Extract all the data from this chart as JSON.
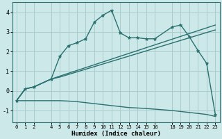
{
  "title": "",
  "xlabel": "Humidex (Indice chaleur)",
  "bg_color": "#cce8e8",
  "grid_color": "#aacccc",
  "line_color": "#2a7070",
  "xlim": [
    -0.5,
    23.5
  ],
  "ylim": [
    -1.6,
    4.5
  ],
  "xticks": [
    0,
    1,
    2,
    4,
    5,
    6,
    7,
    8,
    9,
    10,
    11,
    12,
    13,
    14,
    15,
    16,
    18,
    19,
    20,
    21,
    22,
    23
  ],
  "yticks": [
    -1,
    0,
    1,
    2,
    3,
    4
  ],
  "series": [
    {
      "x": [
        0,
        1,
        2,
        4,
        5,
        6,
        7,
        8,
        9,
        10,
        11,
        12,
        13,
        14,
        15,
        16,
        18,
        19,
        20,
        21,
        22,
        23
      ],
      "y": [
        -0.5,
        0.1,
        0.2,
        0.6,
        1.75,
        2.3,
        2.45,
        2.65,
        3.5,
        3.85,
        4.1,
        2.95,
        2.7,
        2.7,
        2.65,
        2.65,
        3.25,
        3.35,
        2.75,
        2.05,
        1.4,
        -1.2
      ],
      "markers": true
    },
    {
      "x": [
        0,
        4,
        5,
        6,
        7,
        8,
        9,
        10,
        11,
        12,
        13,
        14,
        15,
        16,
        18,
        19,
        20,
        21,
        22,
        23
      ],
      "y": [
        -0.5,
        -0.5,
        -0.5,
        -0.52,
        -0.55,
        -0.6,
        -0.65,
        -0.7,
        -0.75,
        -0.8,
        -0.85,
        -0.87,
        -0.9,
        -0.93,
        -1.0,
        -1.05,
        -1.1,
        -1.15,
        -1.2,
        -1.3
      ],
      "markers": false
    },
    {
      "x": [
        0,
        1,
        2,
        4,
        5,
        23
      ],
      "y": [
        -0.5,
        0.1,
        0.2,
        0.6,
        0.75,
        3.35
      ],
      "markers": false
    },
    {
      "x": [
        0,
        1,
        2,
        4,
        5,
        23
      ],
      "y": [
        -0.5,
        0.1,
        0.2,
        0.6,
        0.7,
        3.1
      ],
      "markers": false
    }
  ]
}
